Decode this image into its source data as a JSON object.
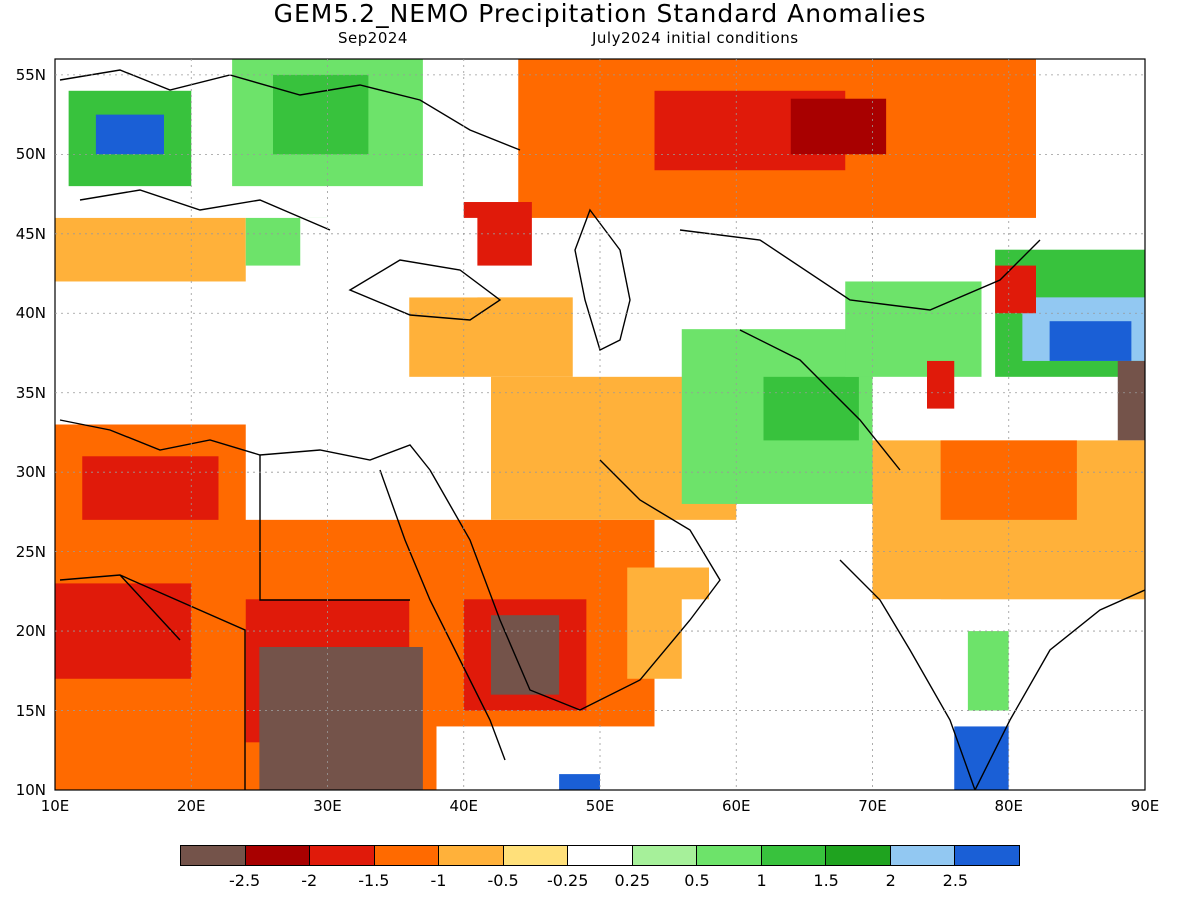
{
  "title": "GEM5.2_NEMO Precipitation Standard Anomalies",
  "subtitle_left": "Sep2024",
  "subtitle_right": "July2024 initial conditions",
  "chart_data": {
    "type": "heatmap",
    "xlabel": "",
    "ylabel": "",
    "x_ticks": [
      "10E",
      "20E",
      "30E",
      "40E",
      "50E",
      "60E",
      "70E",
      "80E",
      "90E"
    ],
    "y_ticks": [
      "10N",
      "15N",
      "20N",
      "25N",
      "30N",
      "35N",
      "40N",
      "45N",
      "50N",
      "55N"
    ],
    "xlim": [
      10,
      90
    ],
    "ylim": [
      10,
      56
    ],
    "colorbar": {
      "labels": [
        "-2.5",
        "-2",
        "-1.5",
        "-1",
        "-0.5",
        "-0.25",
        "0.25",
        "0.5",
        "1",
        "1.5",
        "2",
        "2.5"
      ],
      "colors": [
        "#74534a",
        "#a80000",
        "#e01a0a",
        "#ff6a00",
        "#ffb13a",
        "#ffe07a",
        "#ffffff",
        "#a6f09a",
        "#6de36a",
        "#38c23d",
        "#1fa31f",
        "#92c8f2",
        "#1a5fd6"
      ]
    },
    "regions": [
      {
        "lon_min": 10,
        "lon_max": 90,
        "lat_min": 10,
        "lat_max": 56,
        "category": 6
      },
      {
        "lon_min": 44,
        "lon_max": 82,
        "lat_min": 46,
        "lat_max": 56,
        "category": 3
      },
      {
        "lon_min": 54,
        "lon_max": 68,
        "lat_min": 49,
        "lat_max": 54,
        "category": 2
      },
      {
        "lon_min": 64,
        "lon_max": 71,
        "lat_min": 50,
        "lat_max": 53.5,
        "category": 1
      },
      {
        "lon_min": 11,
        "lon_max": 20,
        "lat_min": 48,
        "lat_max": 54,
        "category": 9
      },
      {
        "lon_min": 13,
        "lon_max": 18,
        "lat_min": 50,
        "lat_max": 52.5,
        "category": 12
      },
      {
        "lon_min": 23,
        "lon_max": 37,
        "lat_min": 48,
        "lat_max": 56,
        "category": 8
      },
      {
        "lon_min": 26,
        "lon_max": 33,
        "lat_min": 50,
        "lat_max": 55,
        "category": 9
      },
      {
        "lon_min": 10,
        "lon_max": 24,
        "lat_min": 42,
        "lat_max": 46,
        "category": 4
      },
      {
        "lon_min": 24,
        "lon_max": 30,
        "lat_min": 43,
        "lat_max": 46,
        "category": 8
      },
      {
        "lon_min": 40,
        "lon_max": 45,
        "lat_min": 43,
        "lat_max": 47,
        "category": 2
      },
      {
        "lon_min": 36,
        "lon_max": 48,
        "lat_min": 36,
        "lat_max": 41,
        "category": 4
      },
      {
        "lon_min": 10,
        "lon_max": 24,
        "lat_min": 10,
        "lat_max": 33,
        "category": 3
      },
      {
        "lon_min": 12,
        "lon_max": 22,
        "lat_min": 27,
        "lat_max": 31,
        "category": 2
      },
      {
        "lon_min": 10,
        "lon_max": 20,
        "lat_min": 17,
        "lat_max": 23,
        "category": 2
      },
      {
        "lon_min": 22,
        "lon_max": 38,
        "lat_min": 10,
        "lat_max": 27,
        "category": 3
      },
      {
        "lon_min": 24,
        "lon_max": 36,
        "lat_min": 13,
        "lat_max": 22,
        "category": 2
      },
      {
        "lon_min": 25,
        "lon_max": 37,
        "lat_min": 10,
        "lat_max": 19,
        "category": 0
      },
      {
        "lon_min": 38,
        "lon_max": 54,
        "lat_min": 14,
        "lat_max": 27,
        "category": 3
      },
      {
        "lon_min": 40,
        "lon_max": 49,
        "lat_min": 15,
        "lat_max": 22,
        "category": 2
      },
      {
        "lon_min": 42,
        "lon_max": 47,
        "lat_min": 16,
        "lat_max": 21,
        "category": 0
      },
      {
        "lon_min": 52,
        "lon_max": 58,
        "lat_min": 17,
        "lat_max": 24,
        "category": 4
      },
      {
        "lon_min": 42,
        "lon_max": 60,
        "lat_min": 27,
        "lat_max": 36,
        "category": 4
      },
      {
        "lon_min": 56,
        "lon_max": 70,
        "lat_min": 28,
        "lat_max": 39,
        "category": 8
      },
      {
        "lon_min": 62,
        "lon_max": 69,
        "lat_min": 32,
        "lat_max": 36,
        "category": 9
      },
      {
        "lon_min": 68,
        "lon_max": 78,
        "lat_min": 36,
        "lat_max": 42,
        "category": 8
      },
      {
        "lon_min": 79,
        "lon_max": 90,
        "lat_min": 36,
        "lat_max": 44,
        "category": 9
      },
      {
        "lon_min": 81,
        "lon_max": 90,
        "lat_min": 37,
        "lat_max": 41,
        "category": 11
      },
      {
        "lon_min": 83,
        "lon_max": 89,
        "lat_min": 37,
        "lat_max": 39.5,
        "category": 12
      },
      {
        "lon_min": 88,
        "lon_max": 90,
        "lat_min": 32,
        "lat_max": 37,
        "category": 0
      },
      {
        "lon_min": 70,
        "lon_max": 90,
        "lat_min": 22,
        "lat_max": 32,
        "category": 4
      },
      {
        "lon_min": 75,
        "lon_max": 85,
        "lat_min": 27,
        "lat_max": 32,
        "category": 3
      },
      {
        "lon_min": 77,
        "lon_max": 80,
        "lat_min": 15,
        "lat_max": 20,
        "category": 8
      },
      {
        "lon_min": 76,
        "lon_max": 80,
        "lat_min": 10,
        "lat_max": 14,
        "category": 12
      },
      {
        "lon_min": 47,
        "lon_max": 50,
        "lat_min": 10,
        "lat_max": 11,
        "category": 12
      },
      {
        "lon_min": 74,
        "lon_max": 76,
        "lat_min": 34,
        "lat_max": 37,
        "category": 2
      },
      {
        "lon_min": 79,
        "lon_max": 82,
        "lat_min": 40,
        "lat_max": 43,
        "category": 2
      }
    ],
    "ocean": [
      {
        "lon_min": 56,
        "lon_max": 75,
        "lat_min": 10,
        "lat_max": 22
      },
      {
        "lon_min": 80,
        "lon_max": 90,
        "lat_min": 10,
        "lat_max": 21
      },
      {
        "lon_min": 24,
        "lon_max": 32,
        "lat_min": 34,
        "lat_max": 37
      },
      {
        "lon_min": 28,
        "lon_max": 41,
        "lat_min": 41,
        "lat_max": 46
      },
      {
        "lon_min": 10,
        "lon_max": 20,
        "lat_min": 33,
        "lat_max": 37
      }
    ]
  }
}
